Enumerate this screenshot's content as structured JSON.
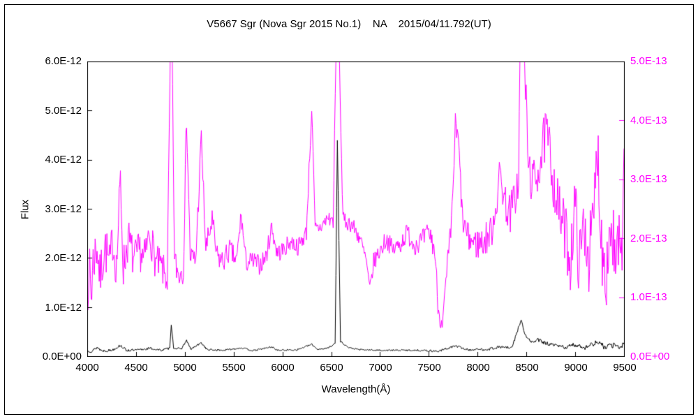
{
  "chart_data": {
    "type": "line",
    "title": "V5667 Sgr (Nova Sgr 2015 No.1)    NA    2015/04/11.792(UT)",
    "xlabel": "Wavelength(Å)",
    "ylabel": "Flux",
    "grid": false,
    "legend": "none",
    "x_range": [
      4000,
      9500
    ],
    "x_tick_labels": [
      "4000",
      "4500",
      "5000",
      "5500",
      "6000",
      "6500",
      "7000",
      "7500",
      "8000",
      "8500",
      "9000",
      "9500"
    ],
    "left_axis": {
      "label": "Flux",
      "range": [
        0,
        6e-12
      ],
      "tick_labels": [
        "0.0E+00",
        "1.0E-12",
        "2.0E-12",
        "3.0E-12",
        "4.0E-12",
        "5.0E-12",
        "6.0E-12"
      ],
      "color": "#000000"
    },
    "right_axis": {
      "range": [
        0,
        5e-13
      ],
      "tick_labels": [
        "0.0E+00",
        "1.0E-13",
        "2.0E-13",
        "3.0E-13",
        "4.0E-13",
        "5.0E-13"
      ],
      "color": "#ff00ff"
    },
    "series": [
      {
        "name": "spectrum-flux-black",
        "axis": "left",
        "color": "#000000",
        "seed": 13,
        "noise": {
          "base": 1.2e-14,
          "blue": 2e-14,
          "red": 5e-14
        },
        "points": [
          [
            4000,
            1.2e-13
          ],
          [
            4050,
            1e-13
          ],
          [
            4101,
            1.8e-13
          ],
          [
            4150,
            1.1e-13
          ],
          [
            4250,
            1.2e-13
          ],
          [
            4340,
            2.2e-13
          ],
          [
            4400,
            1.2e-13
          ],
          [
            4500,
            1.2e-13
          ],
          [
            4640,
            1.6e-13
          ],
          [
            4750,
            1.2e-13
          ],
          [
            4845,
            1.6e-13
          ],
          [
            4861,
            6.5e-13
          ],
          [
            4885,
            1.7e-13
          ],
          [
            4960,
            1.4e-13
          ],
          [
            5018,
            3.2e-13
          ],
          [
            5060,
            1.4e-13
          ],
          [
            5169,
            2.7e-13
          ],
          [
            5230,
            1.3e-13
          ],
          [
            5400,
            1.2e-13
          ],
          [
            5577,
            1.7e-13
          ],
          [
            5700,
            1.1e-13
          ],
          [
            5890,
            1.9e-13
          ],
          [
            5950,
            1.2e-13
          ],
          [
            6150,
            1.3e-13
          ],
          [
            6300,
            2.4e-13
          ],
          [
            6360,
            1.4e-13
          ],
          [
            6460,
            1.6e-13
          ],
          [
            6540,
            2.6e-13
          ],
          [
            6563,
            4.4e-12
          ],
          [
            6595,
            3e-13
          ],
          [
            6680,
            1.7e-13
          ],
          [
            6800,
            1.3e-13
          ],
          [
            7000,
            1.2e-13
          ],
          [
            7200,
            1.2e-13
          ],
          [
            7400,
            1.2e-13
          ],
          [
            7600,
            1e-13
          ],
          [
            7772,
            2.1e-13
          ],
          [
            7900,
            1.3e-13
          ],
          [
            8100,
            1.4e-13
          ],
          [
            8230,
            1.9e-13
          ],
          [
            8350,
            1.6e-13
          ],
          [
            8446,
            7.5e-13
          ],
          [
            8480,
            4.5e-13
          ],
          [
            8550,
            2.8e-13
          ],
          [
            8620,
            3.3e-13
          ],
          [
            8700,
            2.6e-13
          ],
          [
            8800,
            2.1e-13
          ],
          [
            8900,
            1.8e-13
          ],
          [
            9000,
            2.3e-13
          ],
          [
            9100,
            1.8e-13
          ],
          [
            9229,
            2.9e-13
          ],
          [
            9300,
            1.8e-13
          ],
          [
            9400,
            2.3e-13
          ],
          [
            9460,
            1.5e-13
          ],
          [
            9500,
            3e-13
          ]
        ]
      },
      {
        "name": "spectrum-flux-magenta",
        "axis": "right",
        "color": "#ff00ff",
        "seed": 7,
        "noise": {
          "base": 8e-15,
          "blue": 4e-14,
          "red": 7e-14
        },
        "points": [
          [
            4000,
            1.9e-13
          ],
          [
            4012,
            5e-14
          ],
          [
            4025,
            1.8e-13
          ],
          [
            4040,
            1e-13
          ],
          [
            4060,
            1.6e-13
          ],
          [
            4101,
            1.9e-13
          ],
          [
            4130,
            1.3e-13
          ],
          [
            4180,
            1.9e-13
          ],
          [
            4230,
            1.5e-13
          ],
          [
            4260,
            2e-13
          ],
          [
            4300,
            1.5e-13
          ],
          [
            4340,
            3e-13
          ],
          [
            4370,
            1.5e-13
          ],
          [
            4420,
            2e-13
          ],
          [
            4480,
            1.6e-13
          ],
          [
            4540,
            1.8e-13
          ],
          [
            4580,
            1.6e-13
          ],
          [
            4640,
            2.1e-13
          ],
          [
            4700,
            1.6e-13
          ],
          [
            4760,
            1.5e-13
          ],
          [
            4820,
            1.3e-13
          ],
          [
            4861,
            6.2e-13
          ],
          [
            4895,
            1.6e-13
          ],
          [
            4935,
            1.4e-13
          ],
          [
            4985,
            1.5e-13
          ],
          [
            5018,
            4.1e-13
          ],
          [
            5055,
            1.7e-13
          ],
          [
            5110,
            1.6e-13
          ],
          [
            5169,
            3.7e-13
          ],
          [
            5215,
            1.8e-13
          ],
          [
            5280,
            2.3e-13
          ],
          [
            5325,
            1.7e-13
          ],
          [
            5390,
            1.6e-13
          ],
          [
            5460,
            1.8e-13
          ],
          [
            5530,
            1.6e-13
          ],
          [
            5577,
            2.4e-13
          ],
          [
            5625,
            1.6e-13
          ],
          [
            5700,
            1.6e-13
          ],
          [
            5770,
            1.55e-13
          ],
          [
            5835,
            1.7e-13
          ],
          [
            5890,
            2.2e-13
          ],
          [
            5945,
            1.75e-13
          ],
          [
            6010,
            1.8e-13
          ],
          [
            6085,
            1.95e-13
          ],
          [
            6160,
            1.85e-13
          ],
          [
            6245,
            2.1e-13
          ],
          [
            6300,
            4.2e-13
          ],
          [
            6335,
            2.15e-13
          ],
          [
            6400,
            2.2e-13
          ],
          [
            6465,
            2.35e-13
          ],
          [
            6520,
            2.3e-13
          ],
          [
            6563,
            6.5e-13
          ],
          [
            6620,
            2.3e-13
          ],
          [
            6705,
            2.25e-13
          ],
          [
            6795,
            2e-13
          ],
          [
            6860,
            1.6e-13
          ],
          [
            6895,
            1.1e-13
          ],
          [
            6935,
            1.6e-13
          ],
          [
            7005,
            1.8e-13
          ],
          [
            7065,
            2e-13
          ],
          [
            7130,
            1.8e-13
          ],
          [
            7205,
            1.9e-13
          ],
          [
            7281,
            2.1e-13
          ],
          [
            7350,
            1.9e-13
          ],
          [
            7430,
            1.95e-13
          ],
          [
            7505,
            2.1e-13
          ],
          [
            7560,
            1.8e-13
          ],
          [
            7600,
            7.5e-14
          ],
          [
            7645,
            6e-14
          ],
          [
            7690,
            1.5e-13
          ],
          [
            7732,
            2.2e-13
          ],
          [
            7772,
            3.9e-13
          ],
          [
            7805,
            3.6e-13
          ],
          [
            7845,
            2.3e-13
          ],
          [
            7905,
            2e-13
          ],
          [
            7985,
            1.9e-13
          ],
          [
            8065,
            1.95e-13
          ],
          [
            8140,
            2.1e-13
          ],
          [
            8200,
            2.7e-13
          ],
          [
            8230,
            3.1e-13
          ],
          [
            8285,
            2.6e-13
          ],
          [
            8335,
            2.4e-13
          ],
          [
            8395,
            2.8e-13
          ],
          [
            8420,
            3e-13
          ],
          [
            8440,
            5.8e-13
          ],
          [
            8465,
            6.2e-13
          ],
          [
            8490,
            4.6e-13
          ],
          [
            8520,
            3.2e-13
          ],
          [
            8570,
            2.9e-13
          ],
          [
            8605,
            3.1e-13
          ],
          [
            8655,
            3.4e-13
          ],
          [
            8700,
            3.8e-13
          ],
          [
            8735,
            3.5e-13
          ],
          [
            8785,
            2.9e-13
          ],
          [
            8840,
            2.4e-13
          ],
          [
            8900,
            2.1e-13
          ],
          [
            8950,
            1.6e-13
          ],
          [
            9000,
            2.6e-13
          ],
          [
            9040,
            1.5e-13
          ],
          [
            9090,
            2.3e-13
          ],
          [
            9140,
            1.7e-13
          ],
          [
            9185,
            2.2e-13
          ],
          [
            9229,
            3.6e-13
          ],
          [
            9270,
            1.9e-13
          ],
          [
            9320,
            1.5e-13
          ],
          [
            9370,
            2.3e-13
          ],
          [
            9420,
            1.3e-13
          ],
          [
            9450,
            2e-13
          ],
          [
            9480,
            1e-13
          ],
          [
            9500,
            4.3e-13
          ]
        ]
      }
    ]
  }
}
